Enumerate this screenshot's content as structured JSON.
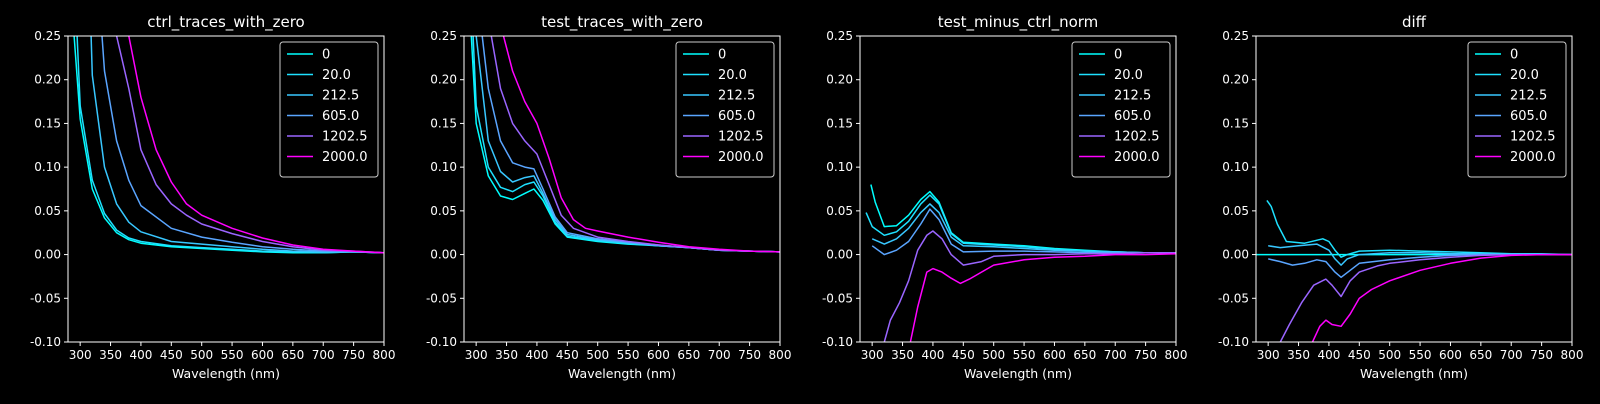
{
  "chart_data": [
    {
      "type": "line",
      "title": "ctrl_traces_with_zero",
      "xlabel": "Wavelength (nm)",
      "ylabel": "",
      "xlim": [
        280,
        800
      ],
      "ylim": [
        -0.1,
        0.25
      ],
      "xticks": [
        300,
        350,
        400,
        450,
        500,
        550,
        600,
        650,
        700,
        750,
        800
      ],
      "yticks": [
        -0.1,
        -0.05,
        0.0,
        0.05,
        0.1,
        0.15,
        0.2,
        0.25
      ],
      "grid": false,
      "legend_position": "top-right",
      "series": [
        {
          "name": "0",
          "color": "#00ffff",
          "x": [
            290,
            300,
            320,
            340,
            360,
            380,
            400,
            450,
            500,
            550,
            600,
            650,
            700,
            750,
            800
          ],
          "y": [
            0.25,
            0.155,
            0.075,
            0.042,
            0.025,
            0.017,
            0.013,
            0.009,
            0.007,
            0.005,
            0.003,
            0.002,
            0.002,
            0.003,
            0.002
          ]
        },
        {
          "name": "20.0",
          "color": "#1ee1ff",
          "x": [
            295,
            300,
            320,
            340,
            360,
            380,
            400,
            450,
            500,
            550,
            600,
            650,
            700,
            750,
            800
          ],
          "y": [
            0.25,
            0.17,
            0.085,
            0.047,
            0.028,
            0.019,
            0.015,
            0.01,
            0.008,
            0.006,
            0.004,
            0.003,
            0.002,
            0.003,
            0.002
          ]
        },
        {
          "name": "212.5",
          "color": "#38c7ff",
          "x": [
            318,
            320,
            340,
            360,
            380,
            400,
            450,
            500,
            550,
            600,
            650,
            700,
            750,
            800
          ],
          "y": [
            0.25,
            0.205,
            0.1,
            0.058,
            0.037,
            0.026,
            0.015,
            0.012,
            0.009,
            0.006,
            0.004,
            0.003,
            0.003,
            0.002
          ]
        },
        {
          "name": "605.0",
          "color": "#5aa5ff",
          "x": [
            336,
            340,
            360,
            380,
            400,
            450,
            500,
            550,
            600,
            650,
            700,
            750,
            800
          ],
          "y": [
            0.25,
            0.21,
            0.13,
            0.085,
            0.056,
            0.03,
            0.02,
            0.014,
            0.009,
            0.006,
            0.004,
            0.003,
            0.002
          ]
        },
        {
          "name": "1202.5",
          "color": "#9a65ff",
          "x": [
            360,
            380,
            400,
            425,
            450,
            475,
            500,
            550,
            600,
            650,
            700,
            750,
            800
          ],
          "y": [
            0.25,
            0.19,
            0.12,
            0.08,
            0.058,
            0.045,
            0.035,
            0.024,
            0.015,
            0.009,
            0.005,
            0.004,
            0.002
          ]
        },
        {
          "name": "2000.0",
          "color": "#ff00ff",
          "x": [
            380,
            400,
            425,
            450,
            475,
            500,
            550,
            600,
            650,
            700,
            750,
            800
          ],
          "y": [
            0.25,
            0.18,
            0.12,
            0.083,
            0.058,
            0.045,
            0.03,
            0.019,
            0.011,
            0.006,
            0.004,
            0.002
          ]
        }
      ]
    },
    {
      "type": "line",
      "title": "test_traces_with_zero",
      "xlabel": "Wavelength (nm)",
      "ylabel": "",
      "xlim": [
        280,
        800
      ],
      "ylim": [
        -0.1,
        0.25
      ],
      "xticks": [
        300,
        350,
        400,
        450,
        500,
        550,
        600,
        650,
        700,
        750,
        800
      ],
      "yticks": [
        -0.1,
        -0.05,
        0.0,
        0.05,
        0.1,
        0.15,
        0.2,
        0.25
      ],
      "grid": false,
      "legend_position": "top-right",
      "series": [
        {
          "name": "0",
          "color": "#00ffff",
          "x": [
            292,
            300,
            320,
            340,
            360,
            380,
            395,
            410,
            430,
            450,
            500,
            550,
            600,
            650,
            700,
            750,
            800
          ],
          "y": [
            0.25,
            0.15,
            0.09,
            0.067,
            0.063,
            0.07,
            0.075,
            0.062,
            0.035,
            0.02,
            0.015,
            0.012,
            0.01,
            0.008,
            0.005,
            0.004,
            0.003
          ]
        },
        {
          "name": "20.0",
          "color": "#1ee1ff",
          "x": [
            295,
            300,
            320,
            340,
            360,
            380,
            395,
            410,
            430,
            450,
            500,
            550,
            600,
            650,
            700,
            750,
            800
          ],
          "y": [
            0.25,
            0.17,
            0.1,
            0.077,
            0.072,
            0.08,
            0.083,
            0.067,
            0.037,
            0.021,
            0.016,
            0.013,
            0.01,
            0.008,
            0.005,
            0.004,
            0.003
          ]
        },
        {
          "name": "212.5",
          "color": "#38c7ff",
          "x": [
            300,
            320,
            340,
            360,
            380,
            395,
            410,
            430,
            450,
            500,
            550,
            600,
            650,
            700,
            750,
            800
          ],
          "y": [
            0.25,
            0.13,
            0.095,
            0.083,
            0.088,
            0.09,
            0.07,
            0.04,
            0.023,
            0.017,
            0.013,
            0.01,
            0.008,
            0.005,
            0.004,
            0.003
          ]
        },
        {
          "name": "605.0",
          "color": "#5aa5ff",
          "x": [
            310,
            320,
            340,
            360,
            380,
            395,
            410,
            430,
            450,
            500,
            550,
            600,
            650,
            700,
            750,
            800
          ],
          "y": [
            0.25,
            0.19,
            0.13,
            0.105,
            0.1,
            0.098,
            0.075,
            0.043,
            0.025,
            0.018,
            0.014,
            0.011,
            0.008,
            0.005,
            0.004,
            0.003
          ]
        },
        {
          "name": "1202.5",
          "color": "#9a65ff",
          "x": [
            325,
            340,
            360,
            380,
            400,
            420,
            440,
            460,
            500,
            550,
            600,
            650,
            700,
            750,
            800
          ],
          "y": [
            0.25,
            0.19,
            0.15,
            0.13,
            0.115,
            0.08,
            0.045,
            0.03,
            0.02,
            0.015,
            0.011,
            0.008,
            0.005,
            0.004,
            0.003
          ]
        },
        {
          "name": "2000.0",
          "color": "#ff00ff",
          "x": [
            345,
            360,
            380,
            400,
            420,
            440,
            460,
            480,
            500,
            550,
            600,
            650,
            700,
            750,
            800
          ],
          "y": [
            0.25,
            0.21,
            0.175,
            0.15,
            0.11,
            0.065,
            0.04,
            0.03,
            0.027,
            0.02,
            0.014,
            0.009,
            0.006,
            0.004,
            0.003
          ]
        }
      ]
    },
    {
      "type": "line",
      "title": "test_minus_ctrl_norm",
      "xlabel": "Wavelength (nm)",
      "ylabel": "",
      "xlim": [
        280,
        800
      ],
      "ylim": [
        -0.1,
        0.25
      ],
      "xticks": [
        300,
        350,
        400,
        450,
        500,
        550,
        600,
        650,
        700,
        750,
        800
      ],
      "yticks": [
        -0.1,
        -0.05,
        0.0,
        0.05,
        0.1,
        0.15,
        0.2,
        0.25
      ],
      "grid": false,
      "legend_position": "top-right",
      "series": [
        {
          "name": "0",
          "color": "#00ffff",
          "x": [
            298,
            305,
            320,
            340,
            360,
            380,
            395,
            410,
            430,
            450,
            500,
            550,
            600,
            650,
            700,
            750,
            800
          ],
          "y": [
            0.08,
            0.06,
            0.032,
            0.033,
            0.045,
            0.063,
            0.072,
            0.06,
            0.025,
            0.014,
            0.012,
            0.01,
            0.007,
            0.005,
            0.003,
            0.002,
            0.002
          ]
        },
        {
          "name": "20.0",
          "color": "#1ee1ff",
          "x": [
            290,
            300,
            320,
            340,
            360,
            380,
            395,
            410,
            430,
            450,
            500,
            550,
            600,
            650,
            700,
            750,
            800
          ],
          "y": [
            0.048,
            0.032,
            0.022,
            0.026,
            0.038,
            0.058,
            0.068,
            0.058,
            0.024,
            0.013,
            0.011,
            0.009,
            0.006,
            0.004,
            0.003,
            0.002,
            0.002
          ]
        },
        {
          "name": "212.5",
          "color": "#38c7ff",
          "x": [
            300,
            320,
            340,
            360,
            380,
            395,
            410,
            430,
            450,
            500,
            550,
            600,
            650,
            700,
            750,
            800
          ],
          "y": [
            0.018,
            0.012,
            0.018,
            0.03,
            0.048,
            0.058,
            0.048,
            0.02,
            0.01,
            0.009,
            0.007,
            0.005,
            0.004,
            0.003,
            0.002,
            0.002
          ]
        },
        {
          "name": "605.0",
          "color": "#5aa5ff",
          "x": [
            300,
            320,
            340,
            360,
            380,
            395,
            410,
            430,
            450,
            500,
            550,
            600,
            650,
            700,
            750,
            800
          ],
          "y": [
            0.01,
            0.0,
            0.005,
            0.015,
            0.035,
            0.052,
            0.04,
            0.012,
            0.003,
            0.004,
            0.004,
            0.003,
            0.002,
            0.002,
            0.002,
            0.002
          ]
        },
        {
          "name": "1202.5",
          "color": "#9a65ff",
          "x": [
            320,
            330,
            345,
            360,
            375,
            390,
            400,
            415,
            430,
            450,
            480,
            500,
            550,
            600,
            650,
            700,
            750,
            800
          ],
          "y": [
            -0.1,
            -0.075,
            -0.055,
            -0.03,
            0.005,
            0.022,
            0.027,
            0.018,
            0.0,
            -0.012,
            -0.008,
            -0.002,
            0.0,
            0.0,
            0.001,
            0.001,
            0.002,
            0.002
          ]
        },
        {
          "name": "2000.0",
          "color": "#ff00ff",
          "x": [
            363,
            375,
            390,
            400,
            415,
            430,
            445,
            460,
            480,
            500,
            550,
            600,
            650,
            700,
            750,
            800
          ],
          "y": [
            -0.1,
            -0.06,
            -0.02,
            -0.016,
            -0.02,
            -0.027,
            -0.033,
            -0.028,
            -0.02,
            -0.012,
            -0.006,
            -0.003,
            -0.002,
            0.0,
            0.0,
            0.001
          ]
        }
      ]
    },
    {
      "type": "line",
      "title": "diff",
      "xlabel": "Wavelength (nm)",
      "ylabel": "",
      "xlim": [
        280,
        800
      ],
      "ylim": [
        -0.1,
        0.25
      ],
      "xticks": [
        300,
        350,
        400,
        450,
        500,
        550,
        600,
        650,
        700,
        750,
        800
      ],
      "yticks": [
        -0.1,
        -0.05,
        0.0,
        0.05,
        0.1,
        0.15,
        0.2,
        0.25
      ],
      "grid": false,
      "legend_position": "top-right",
      "series": [
        {
          "name": "0",
          "color": "#00ffff",
          "x": [
            280,
            800
          ],
          "y": [
            0.0,
            0.0
          ]
        },
        {
          "name": "20.0",
          "color": "#1ee1ff",
          "x": [
            298,
            305,
            315,
            330,
            360,
            390,
            400,
            410,
            420,
            430,
            450,
            500,
            550,
            600,
            650,
            700,
            750,
            800
          ],
          "y": [
            0.062,
            0.055,
            0.035,
            0.015,
            0.013,
            0.018,
            0.015,
            0.005,
            -0.003,
            0.0,
            0.004,
            0.005,
            0.004,
            0.003,
            0.002,
            0.001,
            0.001,
            0.0
          ]
        },
        {
          "name": "212.5",
          "color": "#38c7ff",
          "x": [
            300,
            320,
            350,
            380,
            400,
            410,
            420,
            430,
            450,
            500,
            550,
            600,
            650,
            700,
            750,
            800
          ],
          "y": [
            0.01,
            0.008,
            0.01,
            0.012,
            0.005,
            -0.005,
            -0.012,
            -0.005,
            0.0,
            0.002,
            0.002,
            0.001,
            0.001,
            0.0,
            0.0,
            0.0
          ]
        },
        {
          "name": "605.0",
          "color": "#5aa5ff",
          "x": [
            300,
            320,
            340,
            360,
            380,
            395,
            410,
            420,
            435,
            450,
            500,
            550,
            600,
            650,
            700,
            750,
            800
          ],
          "y": [
            -0.005,
            -0.008,
            -0.012,
            -0.01,
            -0.006,
            -0.008,
            -0.02,
            -0.026,
            -0.018,
            -0.01,
            -0.006,
            -0.003,
            -0.001,
            0.0,
            0.0,
            0.0,
            0.0
          ]
        },
        {
          "name": "1202.5",
          "color": "#9a65ff",
          "x": [
            320,
            335,
            355,
            375,
            395,
            405,
            420,
            435,
            450,
            480,
            500,
            550,
            600,
            650,
            700,
            750,
            800
          ],
          "y": [
            -0.1,
            -0.08,
            -0.055,
            -0.035,
            -0.028,
            -0.035,
            -0.048,
            -0.03,
            -0.02,
            -0.013,
            -0.01,
            -0.006,
            -0.003,
            -0.001,
            0.0,
            0.0,
            0.0
          ]
        },
        {
          "name": "2000.0",
          "color": "#ff00ff",
          "x": [
            373,
            385,
            395,
            405,
            420,
            435,
            450,
            470,
            500,
            550,
            600,
            650,
            700,
            750,
            800
          ],
          "y": [
            -0.1,
            -0.082,
            -0.075,
            -0.08,
            -0.082,
            -0.068,
            -0.05,
            -0.04,
            -0.03,
            -0.018,
            -0.01,
            -0.004,
            -0.001,
            0.0,
            0.0
          ]
        }
      ]
    }
  ]
}
